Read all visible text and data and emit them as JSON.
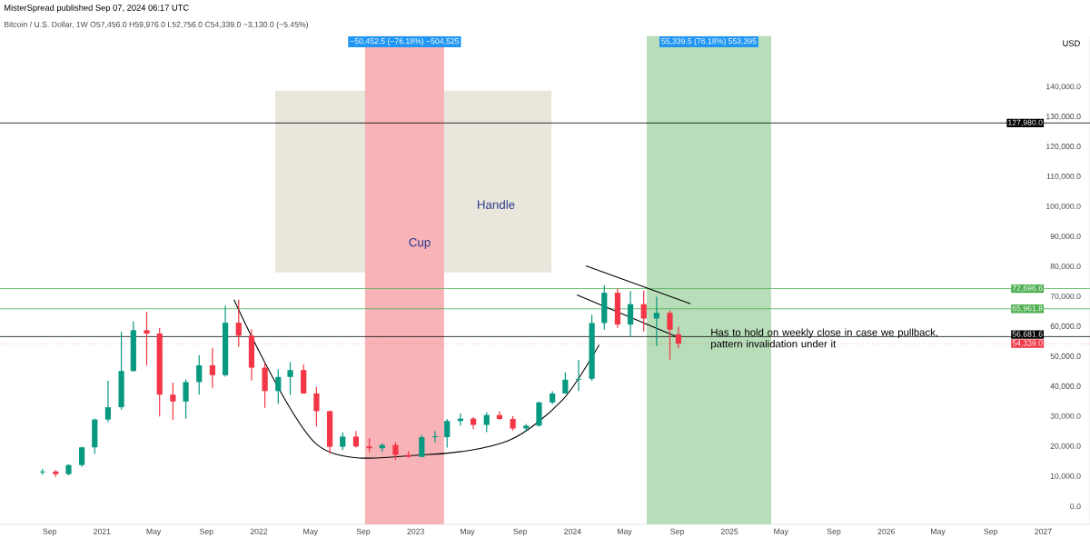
{
  "chart_data": {
    "type": "candlestick",
    "title": "Bitcoin / U.S. Dollar, 1W O57,456.0 H59,976.0 L52,756.0 C54,339.0 −3,130.0 (−5.45%)",
    "subtitle": "MisterSpread published Sep 07, 2024 06:17 UTC",
    "x": [
      "2020-08-15",
      "2020-09-15",
      "2020-10-15",
      "2020-11-15",
      "2020-12-15",
      "2021-01-15",
      "2021-02-15",
      "2021-03-15",
      "2021-04-15",
      "2021-05-15",
      "2021-06-15",
      "2021-07-15",
      "2021-08-15",
      "2021-09-15",
      "2021-10-15",
      "2021-11-15",
      "2021-12-15",
      "2022-01-15",
      "2022-02-15",
      "2022-03-15",
      "2022-04-15",
      "2022-05-15",
      "2022-06-15",
      "2022-07-15",
      "2022-08-15",
      "2022-09-15",
      "2022-10-15",
      "2022-11-15",
      "2022-12-15",
      "2023-01-15",
      "2023-02-15",
      "2023-03-15",
      "2023-04-15",
      "2023-05-15",
      "2023-06-15",
      "2023-07-15",
      "2023-08-15",
      "2023-09-15",
      "2023-10-15",
      "2023-11-15",
      "2023-12-15",
      "2024-01-15",
      "2024-02-15",
      "2024-03-15",
      "2024-04-15",
      "2024-05-15",
      "2024-06-15",
      "2024-07-15",
      "2024-08-15",
      "2024-09-04"
    ],
    "ohlc": [
      [
        11350,
        12470,
        10500,
        11650
      ],
      [
        11650,
        12070,
        9820,
        10780
      ],
      [
        10780,
        14100,
        10370,
        13800
      ],
      [
        13800,
        19900,
        13200,
        19700
      ],
      [
        19700,
        29300,
        17600,
        29000
      ],
      [
        29000,
        41950,
        28100,
        33100
      ],
      [
        33100,
        58350,
        32300,
        45200
      ],
      [
        45200,
        61800,
        44950,
        58800
      ],
      [
        58800,
        64900,
        47000,
        57700
      ],
      [
        57700,
        59500,
        30000,
        37300
      ],
      [
        37300,
        41300,
        28800,
        35000
      ],
      [
        35000,
        42400,
        29300,
        41500
      ],
      [
        41500,
        50500,
        37300,
        47100
      ],
      [
        47100,
        52900,
        39600,
        43800
      ],
      [
        43800,
        67000,
        43300,
        61300
      ],
      [
        61300,
        69000,
        53200,
        57000
      ],
      [
        57000,
        59100,
        42000,
        46300
      ],
      [
        46300,
        48000,
        32900,
        38500
      ],
      [
        38500,
        45800,
        34300,
        43200
      ],
      [
        43200,
        48200,
        37200,
        45500
      ],
      [
        45500,
        47400,
        37600,
        37700
      ],
      [
        37700,
        39900,
        26700,
        31800
      ],
      [
        31800,
        31900,
        17600,
        19900
      ],
      [
        19900,
        24700,
        18800,
        23300
      ],
      [
        23300,
        25200,
        19600,
        20000
      ],
      [
        20000,
        22800,
        18100,
        19400
      ],
      [
        19400,
        21000,
        18200,
        20500
      ],
      [
        20500,
        21500,
        15500,
        17200
      ],
      [
        17200,
        18400,
        16300,
        16500
      ],
      [
        16500,
        23900,
        16500,
        23100
      ],
      [
        23100,
        25200,
        21400,
        23400
      ],
      [
        23100,
        29200,
        19600,
        28500
      ],
      [
        28500,
        31000,
        26900,
        29300
      ],
      [
        29300,
        29800,
        25800,
        27200
      ],
      [
        27200,
        31400,
        24800,
        30500
      ],
      [
        30500,
        31800,
        28900,
        29200
      ],
      [
        29200,
        30200,
        25300,
        26000
      ],
      [
        26000,
        27500,
        24900,
        26950
      ],
      [
        26950,
        35000,
        26600,
        34700
      ],
      [
        34700,
        38400,
        34100,
        37700
      ],
      [
        37700,
        44700,
        37600,
        42300
      ],
      [
        42300,
        48900,
        38500,
        42600
      ],
      [
        42600,
        63900,
        41900,
        61200
      ],
      [
        61200,
        73800,
        59000,
        71300
      ],
      [
        71300,
        72800,
        59600,
        60700
      ],
      [
        60700,
        71900,
        56500,
        67500
      ],
      [
        67500,
        72000,
        58400,
        62700
      ],
      [
        62700,
        70000,
        53500,
        64600
      ],
      [
        64600,
        65500,
        49000,
        59000
      ],
      [
        57456,
        59976,
        52756,
        54339
      ]
    ],
    "colors": [
      "#089981",
      "#f23645",
      "#089981",
      "#089981",
      "#089981",
      "#089981",
      "#089981",
      "#089981",
      "#f23645",
      "#f23645",
      "#f23645",
      "#089981",
      "#089981",
      "#f23645",
      "#089981",
      "#f23645",
      "#f23645",
      "#f23645",
      "#089981",
      "#089981",
      "#f23645",
      "#f23645",
      "#f23645",
      "#089981",
      "#f23645",
      "#f23645",
      "#089981",
      "#f23645",
      "#f23645",
      "#089981",
      "#089981",
      "#089981",
      "#089981",
      "#f23645",
      "#089981",
      "#f23645",
      "#f23645",
      "#089981",
      "#089981",
      "#089981",
      "#089981",
      "#089981",
      "#089981",
      "#089981",
      "#f23645",
      "#089981",
      "#f23645",
      "#089981",
      "#f23645",
      "#f23645"
    ],
    "series": [
      {
        "type": "line",
        "color": "#000000",
        "x": [
          "2021-11-04",
          "2022-05-18",
          "2023-01-26",
          "2023-08-04",
          "2023-12-09",
          "2024-03-03"
        ],
        "values": [
          69000,
          20400,
          17300,
          21900,
          35600,
          53900
        ]
      },
      {
        "type": "line",
        "color": "#000000",
        "x": [
          "2024-02-01",
          "2024-10-02"
        ],
        "values": [
          80300,
          67600
        ]
      },
      {
        "type": "line",
        "color": "#000000",
        "x": [
          "2024-01-11",
          "2024-09-05"
        ],
        "values": [
          70600,
          56300
        ]
      }
    ],
    "xlim": [
      "2020-05-08",
      "2027-04-20"
    ],
    "xticks": [
      {
        "value": "2020-09-01",
        "label": "Sep"
      },
      {
        "value": "2021-01-01",
        "label": "2021"
      },
      {
        "value": "2021-05-01",
        "label": "May"
      },
      {
        "value": "2021-09-01",
        "label": "Sep"
      },
      {
        "value": "2022-01-01",
        "label": "2022"
      },
      {
        "value": "2022-05-01",
        "label": "May"
      },
      {
        "value": "2022-09-01",
        "label": "Sep"
      },
      {
        "value": "2023-01-01",
        "label": "2023"
      },
      {
        "value": "2023-05-01",
        "label": "May"
      },
      {
        "value": "2023-09-01",
        "label": "Sep"
      },
      {
        "value": "2024-01-01",
        "label": "2024"
      },
      {
        "value": "2024-05-01",
        "label": "May"
      },
      {
        "value": "2024-09-01",
        "label": "Sep"
      },
      {
        "value": "2025-01-01",
        "label": "2025"
      },
      {
        "value": "2025-05-01",
        "label": "May"
      },
      {
        "value": "2025-09-01",
        "label": "Sep"
      },
      {
        "value": "2026-01-01",
        "label": "2026"
      },
      {
        "value": "2026-05-01",
        "label": "May"
      },
      {
        "value": "2026-09-01",
        "label": "Sep"
      },
      {
        "value": "2027-01-01",
        "label": "2027"
      }
    ],
    "ylim": [
      -6000,
      157000
    ],
    "yticks": [
      {
        "value": 0,
        "label": "0.0"
      },
      {
        "value": 10000,
        "label": "10,000.0"
      },
      {
        "value": 20000,
        "label": "20,000.0"
      },
      {
        "value": 30000,
        "label": "30,000.0"
      },
      {
        "value": 40000,
        "label": "40,000.0"
      },
      {
        "value": 50000,
        "label": "50,000.0"
      },
      {
        "value": 60000,
        "label": "60,000.0"
      },
      {
        "value": 70000,
        "label": "70,000.0"
      },
      {
        "value": 80000,
        "label": "80,000.0"
      },
      {
        "value": 90000,
        "label": "90,000.0"
      },
      {
        "value": 100000,
        "label": "100,000.0"
      },
      {
        "value": 110000,
        "label": "110,000.0"
      },
      {
        "value": 120000,
        "label": "120,000.0"
      },
      {
        "value": 130000,
        "label": "130,000.0"
      },
      {
        "value": 140000,
        "label": "140,000.0"
      }
    ],
    "ref_lines": [
      {
        "axis": "y",
        "value": 127980,
        "label": "127,980.0",
        "color": "#000000",
        "line_style": "solid"
      },
      {
        "axis": "y",
        "value": 72696.6,
        "label": "72,696.6",
        "color": "#4caf50",
        "line_style": "solid"
      },
      {
        "axis": "y",
        "value": 65961.8,
        "label": "65,961.8",
        "color": "#4caf50",
        "line_style": "solid"
      },
      {
        "axis": "y",
        "value": 56681.6,
        "label": "56,681.6",
        "color": "#000000",
        "line_style": "solid"
      },
      {
        "axis": "y",
        "value": 54339.0,
        "label": "54,339.0",
        "color": "#f23645",
        "line_style": "dotted"
      }
    ],
    "bands": [
      {
        "axis": "x",
        "from": "2022-09-05",
        "to": "2023-03-08",
        "label": "−50,452.5 (−76.18%) −504,525",
        "color": "#f7b3b8"
      },
      {
        "axis": "x",
        "from": "2024-06-22",
        "to": "2025-04-08",
        "label": "55,339.5 (76.18%) 553,395",
        "color": "#b7deb9"
      }
    ],
    "annotations": [
      "USD",
      "Cup",
      "Handle",
      "Has to hold on weekly close in case we pullback, pattern invalidation under it"
    ]
  }
}
